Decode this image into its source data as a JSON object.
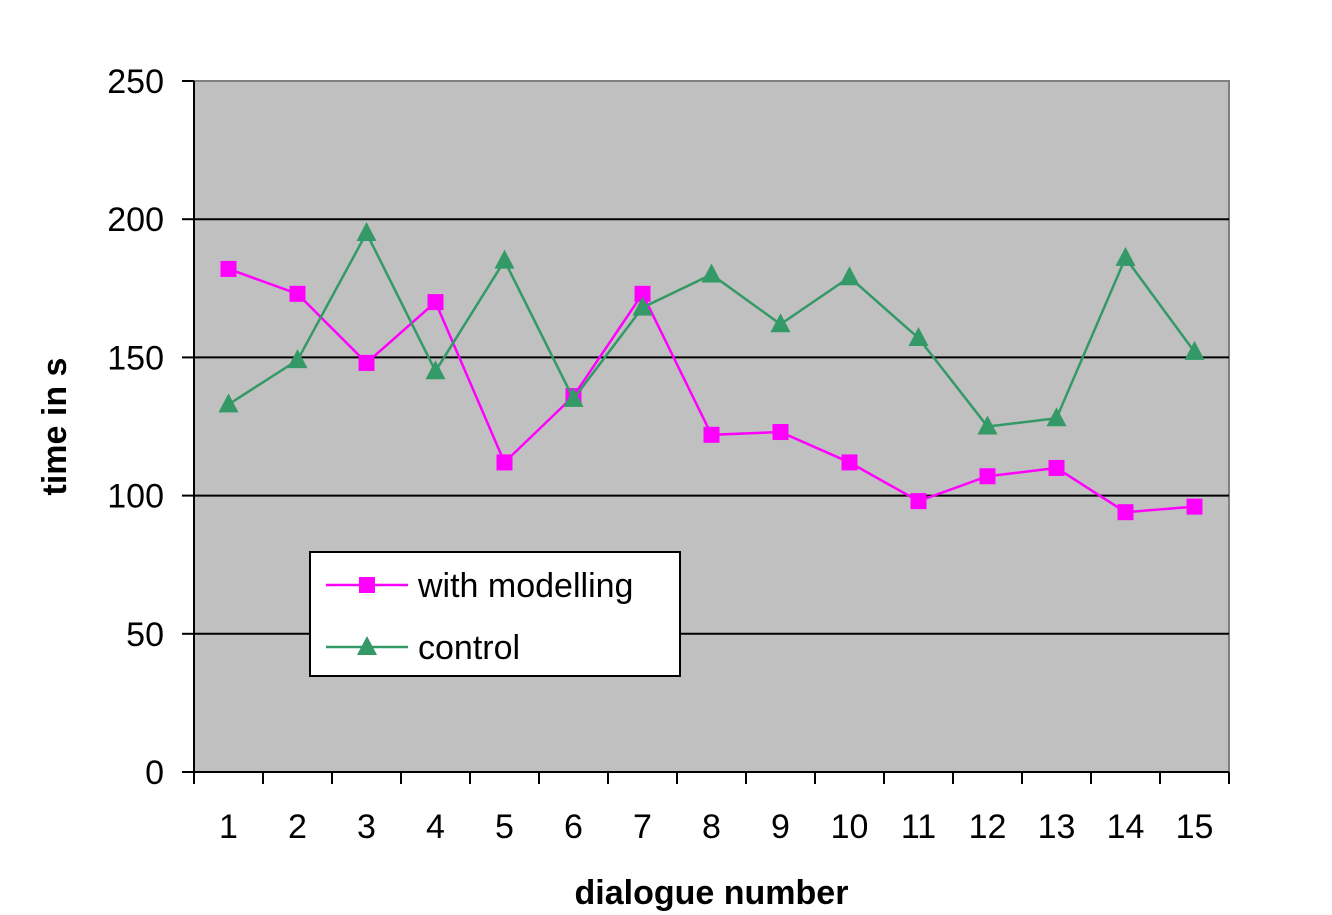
{
  "chart_data": {
    "type": "line",
    "title": "",
    "xlabel": "dialogue number",
    "ylabel": "time in s",
    "categories": [
      "1",
      "2",
      "3",
      "4",
      "5",
      "6",
      "7",
      "8",
      "9",
      "10",
      "11",
      "12",
      "13",
      "14",
      "15"
    ],
    "ylim": [
      0,
      250
    ],
    "yticks": [
      "0",
      "50",
      "100",
      "150",
      "200",
      "250"
    ],
    "grid": true,
    "legend_position": "lower-left",
    "plot_background": "#c0c0c0",
    "series": [
      {
        "name": "with modelling",
        "marker": "square",
        "color": "#ff00ff",
        "values": [
          182,
          173,
          148,
          170,
          112,
          136,
          173,
          122,
          123,
          112,
          98,
          107,
          110,
          94,
          96
        ]
      },
      {
        "name": "control",
        "marker": "triangle",
        "color": "#339966",
        "values": [
          133,
          149,
          195,
          145,
          185,
          135,
          168,
          180,
          162,
          179,
          157,
          125,
          128,
          186,
          152
        ]
      }
    ]
  }
}
